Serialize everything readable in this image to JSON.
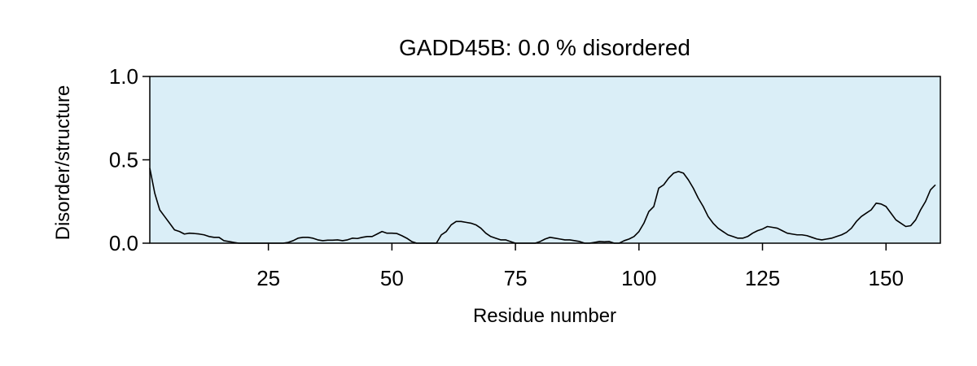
{
  "chart_data": {
    "type": "line",
    "title": "GADD45B: 0.0 % disordered",
    "xlabel": "Residue number",
    "ylabel": "Disorder/structure",
    "xlim": [
      1,
      161
    ],
    "ylim": [
      0,
      1.0
    ],
    "xticks": [
      25,
      50,
      75,
      100,
      125,
      150
    ],
    "xtick_labels": [
      "25",
      "50",
      "75",
      "100",
      "125",
      "150"
    ],
    "yticks": [
      0.0,
      0.5,
      1.0
    ],
    "ytick_labels": [
      "0.0",
      "0.5",
      "1.0"
    ],
    "grid": false,
    "colors": {
      "background": "#daeef7",
      "line": "#000000"
    },
    "series": [
      {
        "x": [
          1,
          2,
          3,
          4,
          5,
          6,
          7,
          8,
          9,
          10,
          11,
          12,
          13,
          14,
          15,
          16,
          17,
          18,
          19,
          20,
          21,
          22,
          23,
          24,
          25,
          26,
          27,
          28,
          29,
          30,
          31,
          32,
          33,
          34,
          35,
          36,
          37,
          38,
          39,
          40,
          41,
          42,
          43,
          44,
          45,
          46,
          47,
          48,
          49,
          50,
          51,
          52,
          53,
          54,
          55,
          56,
          57,
          58,
          59,
          60,
          61,
          62,
          63,
          64,
          65,
          66,
          67,
          68,
          69,
          70,
          71,
          72,
          73,
          74,
          75,
          76,
          77,
          78,
          79,
          80,
          81,
          82,
          83,
          84,
          85,
          86,
          87,
          88,
          89,
          90,
          91,
          92,
          93,
          94,
          95,
          96,
          97,
          98,
          99,
          100,
          101,
          102,
          103,
          104,
          105,
          106,
          107,
          108,
          109,
          110,
          111,
          112,
          113,
          114,
          115,
          116,
          117,
          118,
          119,
          120,
          121,
          122,
          123,
          124,
          125,
          126,
          127,
          128,
          129,
          130,
          131,
          132,
          133,
          134,
          135,
          136,
          137,
          138,
          139,
          140,
          141,
          142,
          143,
          144,
          145,
          146,
          147,
          148,
          149,
          150,
          151,
          152,
          153,
          154,
          155,
          156,
          157,
          158,
          159,
          160
        ],
        "values": [
          0.45,
          0.3,
          0.2,
          0.16,
          0.12,
          0.08,
          0.07,
          0.055,
          0.06,
          0.058,
          0.055,
          0.05,
          0.04,
          0.035,
          0.035,
          0.015,
          0.01,
          0.005,
          0.0,
          0.0,
          0.0,
          0.0,
          0.0,
          0.0,
          0.0,
          0.0,
          0.0,
          0.0,
          0.005,
          0.015,
          0.03,
          0.035,
          0.035,
          0.03,
          0.02,
          0.015,
          0.018,
          0.018,
          0.02,
          0.015,
          0.02,
          0.03,
          0.028,
          0.035,
          0.04,
          0.04,
          0.055,
          0.07,
          0.06,
          0.06,
          0.058,
          0.045,
          0.03,
          0.01,
          0.0,
          0.0,
          0.0,
          0.0,
          0.0,
          0.05,
          0.07,
          0.11,
          0.13,
          0.13,
          0.125,
          0.12,
          0.11,
          0.09,
          0.06,
          0.04,
          0.03,
          0.02,
          0.02,
          0.01,
          0.0,
          0.0,
          0.0,
          0.0,
          0.0,
          0.01,
          0.025,
          0.035,
          0.03,
          0.025,
          0.02,
          0.02,
          0.015,
          0.01,
          0.0,
          0.0,
          0.005,
          0.01,
          0.008,
          0.01,
          0.0,
          0.0,
          0.015,
          0.025,
          0.04,
          0.07,
          0.12,
          0.19,
          0.22,
          0.33,
          0.35,
          0.39,
          0.42,
          0.43,
          0.42,
          0.38,
          0.33,
          0.27,
          0.22,
          0.16,
          0.12,
          0.09,
          0.07,
          0.05,
          0.04,
          0.03,
          0.03,
          0.04,
          0.06,
          0.075,
          0.085,
          0.1,
          0.095,
          0.09,
          0.075,
          0.06,
          0.055,
          0.05,
          0.05,
          0.045,
          0.035,
          0.025,
          0.02,
          0.025,
          0.03,
          0.04,
          0.05,
          0.065,
          0.09,
          0.13,
          0.16,
          0.18,
          0.2,
          0.24,
          0.235,
          0.22,
          0.18,
          0.14,
          0.12,
          0.1,
          0.105,
          0.14,
          0.2,
          0.25,
          0.32,
          0.35
        ]
      }
    ]
  }
}
